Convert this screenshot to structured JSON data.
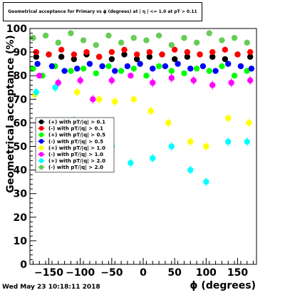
{
  "header": {
    "title": "Geometrical acceptance for Primary vs ϕ (degrees) at | η | <= 1.0 at pT > 0.11"
  },
  "footer": {
    "timestamp": "Wed May 23 10:18:11 2018"
  },
  "chart_data": {
    "type": "scatter",
    "title": "Geometrical acceptance for Primary vs ϕ (degrees) at | η | <= 1.0 at pT > 0.11",
    "xlabel": "ϕ (degrees)",
    "ylabel": "Geometrical acceptance (%)",
    "xlim": [
      -180,
      180
    ],
    "ylim": [
      0,
      100
    ],
    "xticks": [
      -150,
      -100,
      -50,
      0,
      50,
      100,
      150
    ],
    "yticks": [
      0,
      10,
      20,
      30,
      40,
      50,
      60,
      70,
      80,
      90,
      100
    ],
    "grid": false,
    "legend_position": "left-middle",
    "series": [
      {
        "name": "(+) with pT/|q| > 0.1",
        "color": "#000000",
        "marker": "circle",
        "x": [
          -170,
          -150,
          -130,
          -110,
          -90,
          -70,
          -50,
          -30,
          -10,
          10,
          30,
          50,
          70,
          90,
          110,
          130,
          150,
          170
        ],
        "y": [
          88,
          89,
          88,
          87,
          89,
          88,
          87,
          89,
          87,
          88,
          89,
          87,
          88,
          89,
          88,
          87,
          89,
          88
        ]
      },
      {
        "name": "(-) with pT/|q| > 0.1",
        "color": "#ff0000",
        "marker": "circle",
        "x": [
          -170,
          -150,
          -130,
          -110,
          -90,
          -70,
          -50,
          -30,
          -10,
          10,
          30,
          50,
          70,
          90,
          110,
          130,
          150,
          170
        ],
        "y": [
          90,
          89,
          91,
          89,
          90,
          88,
          90,
          91,
          89,
          90,
          89,
          91,
          90,
          89,
          90,
          91,
          89,
          90
        ]
      },
      {
        "name": "(+) with pT/|q| > 0.5",
        "color": "#00ff00",
        "marker": "circle",
        "x": [
          -175,
          -160,
          -140,
          -115,
          -95,
          -75,
          -55,
          -35,
          -15,
          5,
          25,
          45,
          65,
          85,
          105,
          125,
          145,
          165
        ],
        "y": [
          83,
          80,
          84,
          82,
          83,
          81,
          84,
          82,
          83,
          80,
          84,
          82,
          81,
          83,
          82,
          84,
          80,
          82
        ]
      },
      {
        "name": "(-) with pT/|q| > 0.5",
        "color": "#0000ff",
        "marker": "circle",
        "x": [
          -168,
          -145,
          -125,
          -105,
          -85,
          -65,
          -45,
          -25,
          -5,
          15,
          35,
          55,
          75,
          95,
          115,
          135,
          155,
          172
        ],
        "y": [
          85,
          84,
          82,
          83,
          85,
          84,
          82,
          84,
          85,
          83,
          84,
          85,
          83,
          84,
          82,
          85,
          84,
          83
        ]
      },
      {
        "name": "(+) with pT/|q| > 1.0",
        "color": "#ffff00",
        "marker": "circle",
        "x": [
          -172,
          -140,
          -105,
          -70,
          -45,
          -15,
          12,
          40,
          75,
          100,
          135,
          168
        ],
        "y": [
          72,
          75,
          73,
          70,
          69,
          70,
          65,
          60,
          52,
          50,
          62,
          60
        ]
      },
      {
        "name": "(-) with pT/|q| > 1.0",
        "color": "#ff00ff",
        "marker": "circle",
        "x": [
          -165,
          -135,
          -100,
          -80,
          -50,
          -20,
          15,
          45,
          80,
          110,
          140,
          170
        ],
        "y": [
          80,
          77,
          78,
          70,
          78,
          80,
          77,
          79,
          78,
          76,
          77,
          78
        ]
      },
      {
        "name": "(+) with pT/|q| > 2.0",
        "color": "#00ffff",
        "marker": "circle",
        "x": [
          -170,
          -140,
          -110,
          -80,
          -50,
          -20,
          15,
          45,
          75,
          100,
          135,
          165
        ],
        "y": [
          73,
          75,
          61,
          60,
          50,
          43,
          45,
          50,
          40,
          35,
          52,
          52
        ]
      },
      {
        "name": "(-) with pT/|q| > 2.0",
        "color": "#66cc55",
        "marker": "circle",
        "x": [
          -175,
          -155,
          -135,
          -115,
          -95,
          -75,
          -55,
          -35,
          -15,
          5,
          25,
          45,
          65,
          85,
          105,
          125,
          145,
          165
        ],
        "y": [
          96,
          97,
          94,
          98,
          95,
          93,
          97,
          94,
          96,
          95,
          97,
          93,
          96,
          94,
          98,
          95,
          96,
          94
        ]
      }
    ]
  }
}
